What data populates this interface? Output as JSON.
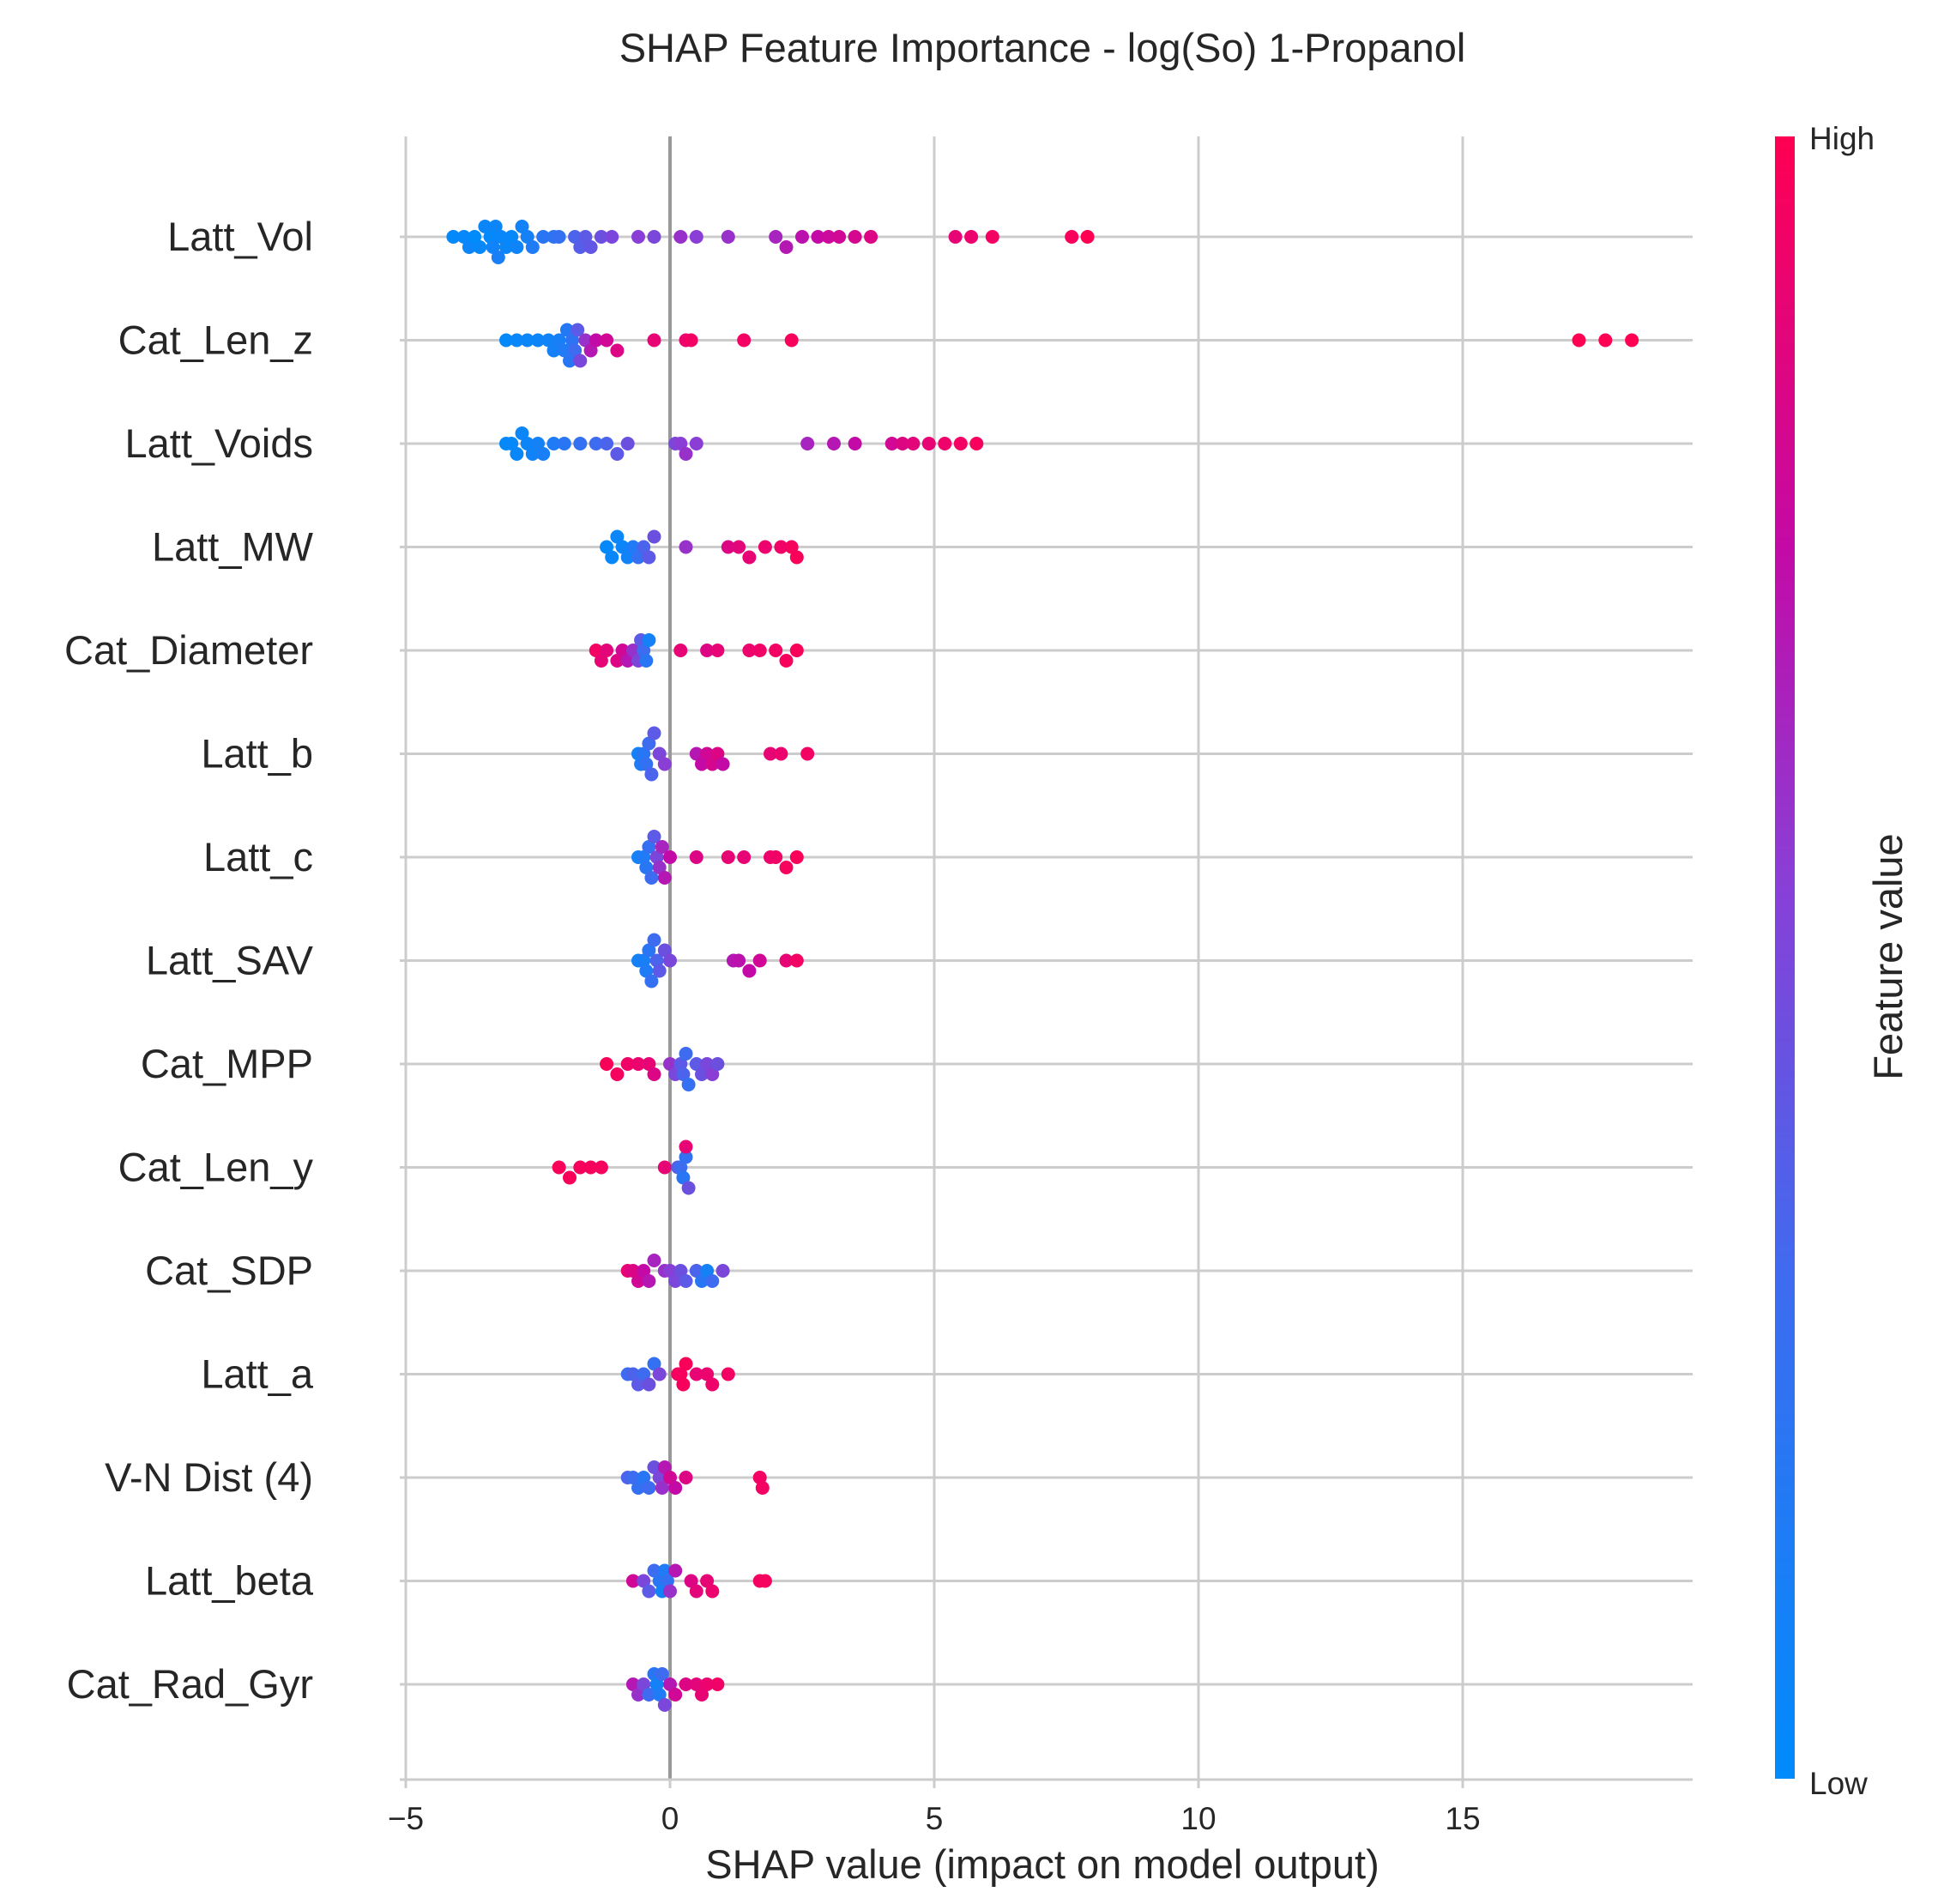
{
  "chart_data": {
    "type": "scatter",
    "title": "SHAP Feature Importance - log(So) 1-Propanol",
    "xlabel": "SHAP value (impact on model output)",
    "xlim": [
      -5,
      19.4
    ],
    "xticks": [
      -5,
      0,
      5,
      10,
      15
    ],
    "xtick_labels": [
      "−5",
      "0",
      "5",
      "10",
      "15"
    ],
    "grid": "vertical gridlines and horizontal feature lines",
    "colorbar": {
      "label": "Feature value",
      "high_label": "High",
      "low_label": "Low",
      "low_color": "#008bfb",
      "high_color": "#ff0052"
    },
    "features": [
      {
        "name": "Latt_Vol",
        "points": [
          [
            -4.1,
            0.02
          ],
          [
            -3.9,
            0.04
          ],
          [
            -3.8,
            0.06
          ],
          [
            -3.7,
            0.0
          ],
          [
            -3.6,
            0.03
          ],
          [
            -3.5,
            0.05
          ],
          [
            -3.4,
            0.02
          ],
          [
            -3.35,
            0.08
          ],
          [
            -3.3,
            0.06
          ],
          [
            -3.25,
            0.12
          ],
          [
            -3.2,
            0.04
          ],
          [
            -3.1,
            0.05
          ],
          [
            -3.0,
            0.03
          ],
          [
            -2.9,
            0.07
          ],
          [
            -2.8,
            0.09
          ],
          [
            -2.7,
            0.1
          ],
          [
            -2.6,
            0.15
          ],
          [
            -2.4,
            0.2
          ],
          [
            -2.2,
            0.22
          ],
          [
            -2.1,
            0.25
          ],
          [
            -1.8,
            0.35
          ],
          [
            -1.7,
            0.38
          ],
          [
            -1.6,
            0.4
          ],
          [
            -1.5,
            0.42
          ],
          [
            -1.3,
            0.45
          ],
          [
            -1.1,
            0.5
          ],
          [
            -0.6,
            0.55
          ],
          [
            -0.3,
            0.5
          ],
          [
            0.2,
            0.6
          ],
          [
            0.5,
            0.55
          ],
          [
            1.1,
            0.6
          ],
          [
            2.0,
            0.65
          ],
          [
            2.2,
            0.7
          ],
          [
            2.5,
            0.72
          ],
          [
            2.8,
            0.75
          ],
          [
            3.0,
            0.78
          ],
          [
            3.2,
            0.8
          ],
          [
            3.5,
            0.82
          ],
          [
            3.8,
            0.85
          ],
          [
            5.4,
            0.9
          ],
          [
            5.7,
            0.92
          ],
          [
            6.1,
            0.95
          ],
          [
            7.6,
            0.97
          ],
          [
            7.9,
            1.0
          ]
        ]
      },
      {
        "name": "Cat_Len_z",
        "points": [
          [
            -3.1,
            0.02
          ],
          [
            -2.9,
            0.04
          ],
          [
            -2.7,
            0.05
          ],
          [
            -2.5,
            0.06
          ],
          [
            -2.3,
            0.08
          ],
          [
            -2.2,
            0.1
          ],
          [
            -2.1,
            0.12
          ],
          [
            -2.0,
            0.15
          ],
          [
            -1.95,
            0.18
          ],
          [
            -1.9,
            0.2
          ],
          [
            -1.85,
            0.22
          ],
          [
            -1.8,
            0.3
          ],
          [
            -1.75,
            0.4
          ],
          [
            -1.7,
            0.5
          ],
          [
            -1.6,
            0.6
          ],
          [
            -1.5,
            0.7
          ],
          [
            -1.4,
            0.75
          ],
          [
            -1.2,
            0.8
          ],
          [
            -1.0,
            0.85
          ],
          [
            -0.3,
            0.9
          ],
          [
            0.3,
            0.92
          ],
          [
            0.4,
            0.95
          ],
          [
            1.4,
            0.95
          ],
          [
            2.3,
            0.97
          ],
          [
            17.2,
            1.0
          ],
          [
            17.7,
            1.0
          ],
          [
            18.2,
            1.0
          ]
        ]
      },
      {
        "name": "Latt_Voids",
        "points": [
          [
            -3.1,
            0.02
          ],
          [
            -3.0,
            0.03
          ],
          [
            -2.9,
            0.04
          ],
          [
            -2.8,
            0.05
          ],
          [
            -2.7,
            0.06
          ],
          [
            -2.6,
            0.08
          ],
          [
            -2.5,
            0.1
          ],
          [
            -2.4,
            0.12
          ],
          [
            -2.2,
            0.15
          ],
          [
            -2.0,
            0.2
          ],
          [
            -1.7,
            0.25
          ],
          [
            -1.4,
            0.3
          ],
          [
            -1.2,
            0.35
          ],
          [
            -1.0,
            0.4
          ],
          [
            -0.8,
            0.45
          ],
          [
            0.1,
            0.5
          ],
          [
            0.2,
            0.55
          ],
          [
            0.3,
            0.6
          ],
          [
            0.5,
            0.55
          ],
          [
            2.6,
            0.65
          ],
          [
            3.1,
            0.7
          ],
          [
            3.5,
            0.75
          ],
          [
            4.2,
            0.8
          ],
          [
            4.4,
            0.85
          ],
          [
            4.6,
            0.88
          ],
          [
            4.9,
            0.9
          ],
          [
            5.2,
            0.93
          ],
          [
            5.5,
            0.95
          ],
          [
            5.8,
            0.97
          ]
        ]
      },
      {
        "name": "Latt_MW",
        "points": [
          [
            -1.2,
            0.02
          ],
          [
            -1.1,
            0.04
          ],
          [
            -1.0,
            0.05
          ],
          [
            -0.9,
            0.06
          ],
          [
            -0.8,
            0.08
          ],
          [
            -0.7,
            0.15
          ],
          [
            -0.6,
            0.25
          ],
          [
            -0.5,
            0.35
          ],
          [
            -0.4,
            0.4
          ],
          [
            -0.3,
            0.45
          ],
          [
            0.3,
            0.6
          ],
          [
            1.1,
            0.85
          ],
          [
            1.3,
            0.88
          ],
          [
            1.5,
            0.9
          ],
          [
            1.8,
            0.92
          ],
          [
            2.1,
            0.94
          ],
          [
            2.3,
            0.96
          ],
          [
            2.4,
            0.98
          ]
        ]
      },
      {
        "name": "Cat_Diameter",
        "points": [
          [
            -1.4,
            0.95
          ],
          [
            -1.3,
            0.9
          ],
          [
            -1.2,
            0.88
          ],
          [
            -1.0,
            0.85
          ],
          [
            -0.9,
            0.8
          ],
          [
            -0.8,
            0.7
          ],
          [
            -0.7,
            0.6
          ],
          [
            -0.6,
            0.5
          ],
          [
            -0.55,
            0.4
          ],
          [
            -0.5,
            0.3
          ],
          [
            -0.45,
            0.2
          ],
          [
            -0.4,
            0.1
          ],
          [
            0.2,
            0.9
          ],
          [
            0.7,
            0.85
          ],
          [
            0.9,
            0.9
          ],
          [
            1.5,
            0.92
          ],
          [
            1.7,
            0.94
          ],
          [
            2.0,
            0.95
          ],
          [
            2.2,
            0.97
          ],
          [
            2.4,
            0.98
          ]
        ]
      },
      {
        "name": "Latt_b",
        "points": [
          [
            -0.6,
            0.1
          ],
          [
            -0.55,
            0.15
          ],
          [
            -0.5,
            0.2
          ],
          [
            -0.45,
            0.25
          ],
          [
            -0.4,
            0.3
          ],
          [
            -0.35,
            0.35
          ],
          [
            -0.3,
            0.4
          ],
          [
            -0.2,
            0.5
          ],
          [
            -0.1,
            0.55
          ],
          [
            0.5,
            0.7
          ],
          [
            0.6,
            0.75
          ],
          [
            0.7,
            0.8
          ],
          [
            0.8,
            0.82
          ],
          [
            0.9,
            0.85
          ],
          [
            1.0,
            0.75
          ],
          [
            1.9,
            0.9
          ],
          [
            2.1,
            0.92
          ],
          [
            2.6,
            0.95
          ]
        ]
      },
      {
        "name": "Latt_c",
        "points": [
          [
            -0.6,
            0.1
          ],
          [
            -0.5,
            0.15
          ],
          [
            -0.45,
            0.2
          ],
          [
            -0.4,
            0.25
          ],
          [
            -0.35,
            0.3
          ],
          [
            -0.3,
            0.4
          ],
          [
            -0.25,
            0.5
          ],
          [
            -0.2,
            0.6
          ],
          [
            -0.15,
            0.65
          ],
          [
            -0.1,
            0.7
          ],
          [
            0.0,
            0.75
          ],
          [
            0.5,
            0.85
          ],
          [
            1.1,
            0.9
          ],
          [
            1.4,
            0.9
          ],
          [
            1.9,
            0.92
          ],
          [
            2.0,
            0.94
          ],
          [
            2.2,
            0.96
          ],
          [
            2.4,
            0.98
          ]
        ]
      },
      {
        "name": "Latt_SAV",
        "points": [
          [
            -0.6,
            0.1
          ],
          [
            -0.5,
            0.12
          ],
          [
            -0.45,
            0.15
          ],
          [
            -0.4,
            0.2
          ],
          [
            -0.35,
            0.25
          ],
          [
            -0.3,
            0.3
          ],
          [
            -0.25,
            0.35
          ],
          [
            -0.2,
            0.4
          ],
          [
            -0.1,
            0.45
          ],
          [
            0.0,
            0.5
          ],
          [
            1.2,
            0.7
          ],
          [
            1.3,
            0.72
          ],
          [
            1.5,
            0.75
          ],
          [
            1.7,
            0.8
          ],
          [
            2.2,
            0.9
          ],
          [
            2.4,
            0.95
          ]
        ]
      },
      {
        "name": "Cat_MPP",
        "points": [
          [
            -1.2,
            0.98
          ],
          [
            -1.0,
            0.96
          ],
          [
            -0.8,
            0.94
          ],
          [
            -0.6,
            0.92
          ],
          [
            -0.4,
            0.9
          ],
          [
            -0.3,
            0.85
          ],
          [
            0.0,
            0.6
          ],
          [
            0.1,
            0.5
          ],
          [
            0.2,
            0.4
          ],
          [
            0.25,
            0.35
          ],
          [
            0.3,
            0.3
          ],
          [
            0.35,
            0.25
          ],
          [
            0.5,
            0.4
          ],
          [
            0.6,
            0.45
          ],
          [
            0.7,
            0.5
          ],
          [
            0.8,
            0.55
          ],
          [
            0.9,
            0.45
          ]
        ]
      },
      {
        "name": "Cat_Len_y",
        "points": [
          [
            -2.1,
            0.98
          ],
          [
            -1.9,
            0.98
          ],
          [
            -1.7,
            0.97
          ],
          [
            -1.5,
            0.97
          ],
          [
            -1.3,
            0.96
          ],
          [
            -0.1,
            0.9
          ],
          [
            0.15,
            0.4
          ],
          [
            0.2,
            0.3
          ],
          [
            0.25,
            0.2
          ],
          [
            0.3,
            0.25
          ],
          [
            0.35,
            0.45
          ],
          [
            0.3,
            0.9
          ]
        ]
      },
      {
        "name": "Cat_SDP",
        "points": [
          [
            -0.8,
            0.9
          ],
          [
            -0.7,
            0.85
          ],
          [
            -0.6,
            0.8
          ],
          [
            -0.5,
            0.75
          ],
          [
            -0.4,
            0.7
          ],
          [
            -0.3,
            0.65
          ],
          [
            -0.1,
            0.6
          ],
          [
            0.0,
            0.55
          ],
          [
            0.1,
            0.5
          ],
          [
            0.2,
            0.45
          ],
          [
            0.3,
            0.4
          ],
          [
            0.5,
            0.35
          ],
          [
            0.6,
            0.2
          ],
          [
            0.7,
            0.1
          ],
          [
            0.8,
            0.3
          ],
          [
            1.0,
            0.5
          ]
        ]
      },
      {
        "name": "Latt_a",
        "points": [
          [
            -0.8,
            0.3
          ],
          [
            -0.7,
            0.35
          ],
          [
            -0.6,
            0.4
          ],
          [
            -0.5,
            0.3
          ],
          [
            -0.4,
            0.45
          ],
          [
            -0.3,
            0.25
          ],
          [
            -0.2,
            0.5
          ],
          [
            0.15,
            0.95
          ],
          [
            0.2,
            0.96
          ],
          [
            0.25,
            0.97
          ],
          [
            0.3,
            0.98
          ],
          [
            0.5,
            0.9
          ],
          [
            0.7,
            0.92
          ],
          [
            0.8,
            0.93
          ],
          [
            1.1,
            0.95
          ]
        ]
      },
      {
        "name": "V-N Dist (4)",
        "points": [
          [
            -0.8,
            0.35
          ],
          [
            -0.7,
            0.3
          ],
          [
            -0.6,
            0.25
          ],
          [
            -0.5,
            0.2
          ],
          [
            -0.4,
            0.3
          ],
          [
            -0.3,
            0.45
          ],
          [
            -0.2,
            0.5
          ],
          [
            -0.15,
            0.6
          ],
          [
            -0.1,
            0.7
          ],
          [
            0.0,
            0.8
          ],
          [
            0.1,
            0.75
          ],
          [
            0.3,
            0.85
          ],
          [
            1.7,
            0.95
          ],
          [
            1.75,
            0.95
          ]
        ]
      },
      {
        "name": "Latt_beta",
        "points": [
          [
            -0.7,
            0.8
          ],
          [
            -0.5,
            0.5
          ],
          [
            -0.4,
            0.4
          ],
          [
            -0.3,
            0.3
          ],
          [
            -0.2,
            0.2
          ],
          [
            -0.15,
            0.1
          ],
          [
            -0.1,
            0.15
          ],
          [
            -0.05,
            0.25
          ],
          [
            0.0,
            0.6
          ],
          [
            0.1,
            0.7
          ],
          [
            0.4,
            0.85
          ],
          [
            0.5,
            0.88
          ],
          [
            0.7,
            0.9
          ],
          [
            0.8,
            0.92
          ],
          [
            1.7,
            0.95
          ],
          [
            1.8,
            0.96
          ]
        ]
      },
      {
        "name": "Cat_Rad_Gyr",
        "points": [
          [
            -0.7,
            0.7
          ],
          [
            -0.6,
            0.6
          ],
          [
            -0.5,
            0.5
          ],
          [
            -0.4,
            0.3
          ],
          [
            -0.3,
            0.2
          ],
          [
            -0.25,
            0.1
          ],
          [
            -0.2,
            0.15
          ],
          [
            -0.15,
            0.3
          ],
          [
            -0.1,
            0.5
          ],
          [
            0.0,
            0.7
          ],
          [
            0.1,
            0.8
          ],
          [
            0.3,
            0.85
          ],
          [
            0.5,
            0.88
          ],
          [
            0.6,
            0.9
          ],
          [
            0.7,
            0.92
          ],
          [
            0.9,
            0.94
          ]
        ]
      }
    ]
  }
}
